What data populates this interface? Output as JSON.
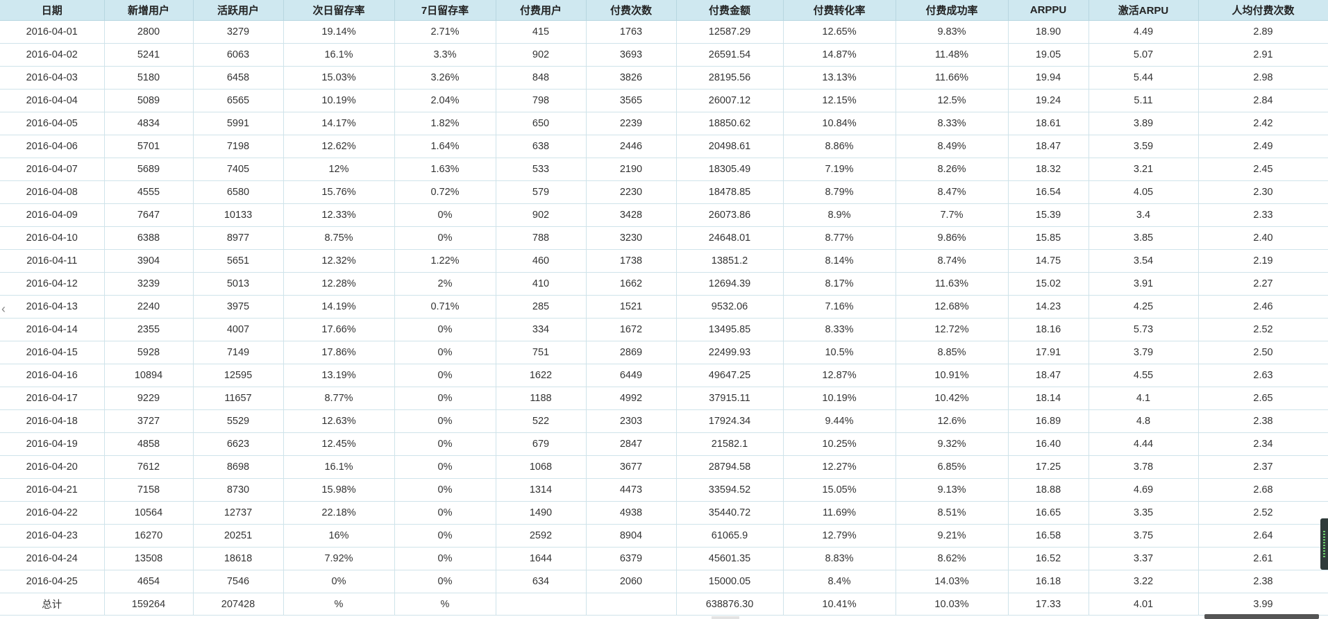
{
  "table": {
    "columns": [
      "日期",
      "新增用户",
      "活跃用户",
      "次日留存率",
      "7日留存率",
      "付费用户",
      "付费次数",
      "付费金额",
      "付费转化率",
      "付费成功率",
      "ARPPU",
      "激活ARPU",
      "人均付费次数"
    ],
    "rows": [
      [
        "2016-04-01",
        "2800",
        "3279",
        "19.14%",
        "2.71%",
        "415",
        "1763",
        "12587.29",
        "12.65%",
        "9.83%",
        "18.90",
        "4.49",
        "2.89"
      ],
      [
        "2016-04-02",
        "5241",
        "6063",
        "16.1%",
        "3.3%",
        "902",
        "3693",
        "26591.54",
        "14.87%",
        "11.48%",
        "19.05",
        "5.07",
        "2.91"
      ],
      [
        "2016-04-03",
        "5180",
        "6458",
        "15.03%",
        "3.26%",
        "848",
        "3826",
        "28195.56",
        "13.13%",
        "11.66%",
        "19.94",
        "5.44",
        "2.98"
      ],
      [
        "2016-04-04",
        "5089",
        "6565",
        "10.19%",
        "2.04%",
        "798",
        "3565",
        "26007.12",
        "12.15%",
        "12.5%",
        "19.24",
        "5.11",
        "2.84"
      ],
      [
        "2016-04-05",
        "4834",
        "5991",
        "14.17%",
        "1.82%",
        "650",
        "2239",
        "18850.62",
        "10.84%",
        "8.33%",
        "18.61",
        "3.89",
        "2.42"
      ],
      [
        "2016-04-06",
        "5701",
        "7198",
        "12.62%",
        "1.64%",
        "638",
        "2446",
        "20498.61",
        "8.86%",
        "8.49%",
        "18.47",
        "3.59",
        "2.49"
      ],
      [
        "2016-04-07",
        "5689",
        "7405",
        "12%",
        "1.63%",
        "533",
        "2190",
        "18305.49",
        "7.19%",
        "8.26%",
        "18.32",
        "3.21",
        "2.45"
      ],
      [
        "2016-04-08",
        "4555",
        "6580",
        "15.76%",
        "0.72%",
        "579",
        "2230",
        "18478.85",
        "8.79%",
        "8.47%",
        "16.54",
        "4.05",
        "2.30"
      ],
      [
        "2016-04-09",
        "7647",
        "10133",
        "12.33%",
        "0%",
        "902",
        "3428",
        "26073.86",
        "8.9%",
        "7.7%",
        "15.39",
        "3.4",
        "2.33"
      ],
      [
        "2016-04-10",
        "6388",
        "8977",
        "8.75%",
        "0%",
        "788",
        "3230",
        "24648.01",
        "8.77%",
        "9.86%",
        "15.85",
        "3.85",
        "2.40"
      ],
      [
        "2016-04-11",
        "3904",
        "5651",
        "12.32%",
        "1.22%",
        "460",
        "1738",
        "13851.2",
        "8.14%",
        "8.74%",
        "14.75",
        "3.54",
        "2.19"
      ],
      [
        "2016-04-12",
        "3239",
        "5013",
        "12.28%",
        "2%",
        "410",
        "1662",
        "12694.39",
        "8.17%",
        "11.63%",
        "15.02",
        "3.91",
        "2.27"
      ],
      [
        "2016-04-13",
        "2240",
        "3975",
        "14.19%",
        "0.71%",
        "285",
        "1521",
        "9532.06",
        "7.16%",
        "12.68%",
        "14.23",
        "4.25",
        "2.46"
      ],
      [
        "2016-04-14",
        "2355",
        "4007",
        "17.66%",
        "0%",
        "334",
        "1672",
        "13495.85",
        "8.33%",
        "12.72%",
        "18.16",
        "5.73",
        "2.52"
      ],
      [
        "2016-04-15",
        "5928",
        "7149",
        "17.86%",
        "0%",
        "751",
        "2869",
        "22499.93",
        "10.5%",
        "8.85%",
        "17.91",
        "3.79",
        "2.50"
      ],
      [
        "2016-04-16",
        "10894",
        "12595",
        "13.19%",
        "0%",
        "1622",
        "6449",
        "49647.25",
        "12.87%",
        "10.91%",
        "18.47",
        "4.55",
        "2.63"
      ],
      [
        "2016-04-17",
        "9229",
        "11657",
        "8.77%",
        "0%",
        "1188",
        "4992",
        "37915.11",
        "10.19%",
        "10.42%",
        "18.14",
        "4.1",
        "2.65"
      ],
      [
        "2016-04-18",
        "3727",
        "5529",
        "12.63%",
        "0%",
        "522",
        "2303",
        "17924.34",
        "9.44%",
        "12.6%",
        "16.89",
        "4.8",
        "2.38"
      ],
      [
        "2016-04-19",
        "4858",
        "6623",
        "12.45%",
        "0%",
        "679",
        "2847",
        "21582.1",
        "10.25%",
        "9.32%",
        "16.40",
        "4.44",
        "2.34"
      ],
      [
        "2016-04-20",
        "7612",
        "8698",
        "16.1%",
        "0%",
        "1068",
        "3677",
        "28794.58",
        "12.27%",
        "6.85%",
        "17.25",
        "3.78",
        "2.37"
      ],
      [
        "2016-04-21",
        "7158",
        "8730",
        "15.98%",
        "0%",
        "1314",
        "4473",
        "33594.52",
        "15.05%",
        "9.13%",
        "18.88",
        "4.69",
        "2.68"
      ],
      [
        "2016-04-22",
        "10564",
        "12737",
        "22.18%",
        "0%",
        "1490",
        "4938",
        "35440.72",
        "11.69%",
        "8.51%",
        "16.65",
        "3.35",
        "2.52"
      ],
      [
        "2016-04-23",
        "16270",
        "20251",
        "16%",
        "0%",
        "2592",
        "8904",
        "61065.9",
        "12.79%",
        "9.21%",
        "16.58",
        "3.75",
        "2.64"
      ],
      [
        "2016-04-24",
        "13508",
        "18618",
        "7.92%",
        "0%",
        "1644",
        "6379",
        "45601.35",
        "8.83%",
        "8.62%",
        "16.52",
        "3.37",
        "2.61"
      ],
      [
        "2016-04-25",
        "4654",
        "7546",
        "0%",
        "0%",
        "634",
        "2060",
        "15000.05",
        "8.4%",
        "14.03%",
        "16.18",
        "3.22",
        "2.38"
      ]
    ],
    "total": [
      "总计",
      "159264",
      "207428",
      "%",
      "%",
      "",
      "",
      "638876.30",
      "10.41%",
      "10.03%",
      "17.33",
      "4.01",
      "3.99"
    ]
  },
  "icons": {
    "left_arrow": "chevron-left-icon",
    "left_arrow_glyph": "‹",
    "scroll_handle": "scroll-handle-icon"
  },
  "colors": {
    "header_bg": "#cfe8f0",
    "grid_line": "#cfe3ea",
    "text": "#333333"
  }
}
